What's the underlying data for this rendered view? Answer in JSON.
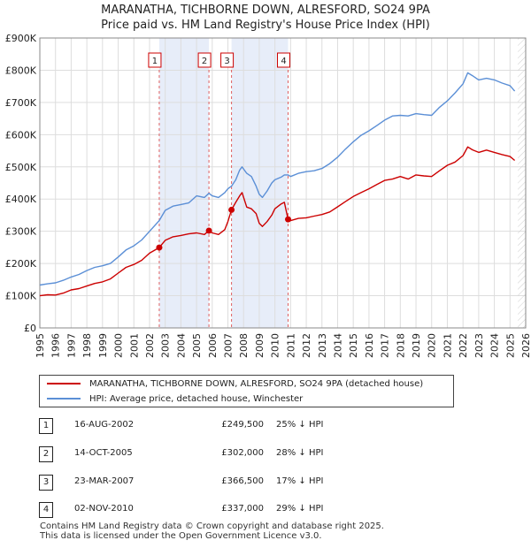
{
  "chart_data": {
    "type": "line",
    "title": "MARANATHA, TICHBORNE DOWN, ALRESFORD, SO24 9PA",
    "subtitle": "Price paid vs. HM Land Registry's House Price Index (HPI)",
    "xlim": [
      1995,
      2026
    ],
    "ylim": [
      0,
      900000
    ],
    "x_ticks": [
      1995,
      1996,
      1997,
      1998,
      1999,
      2000,
      2001,
      2002,
      2003,
      2004,
      2005,
      2006,
      2007,
      2008,
      2009,
      2010,
      2011,
      2012,
      2013,
      2014,
      2015,
      2016,
      2017,
      2018,
      2019,
      2020,
      2021,
      2022,
      2023,
      2024,
      2025,
      2026
    ],
    "y_ticks": [
      0,
      100000,
      200000,
      300000,
      400000,
      500000,
      600000,
      700000,
      800000,
      900000
    ],
    "y_tick_labels": [
      "£0",
      "£100K",
      "£200K",
      "£300K",
      "£400K",
      "£500K",
      "£600K",
      "£700K",
      "£800K",
      "£900K"
    ],
    "series": [
      {
        "name": "MARANATHA, TICHBORNE DOWN, ALRESFORD, SO24 9PA (detached house)",
        "color": "#cc0000",
        "points": [
          [
            1995.0,
            100000
          ],
          [
            1995.5,
            103000
          ],
          [
            1996.0,
            102000
          ],
          [
            1996.5,
            108000
          ],
          [
            1997.0,
            118000
          ],
          [
            1997.5,
            122000
          ],
          [
            1998.0,
            130000
          ],
          [
            1998.5,
            138000
          ],
          [
            1999.0,
            143000
          ],
          [
            1999.5,
            152000
          ],
          [
            2000.0,
            170000
          ],
          [
            2000.5,
            188000
          ],
          [
            2001.0,
            197000
          ],
          [
            2001.5,
            210000
          ],
          [
            2002.0,
            232000
          ],
          [
            2002.62,
            249500
          ],
          [
            2003.0,
            272000
          ],
          [
            2003.5,
            283000
          ],
          [
            2004.0,
            287000
          ],
          [
            2004.5,
            292000
          ],
          [
            2005.0,
            295000
          ],
          [
            2005.5,
            290000
          ],
          [
            2005.79,
            302000
          ],
          [
            2006.0,
            295000
          ],
          [
            2006.4,
            290000
          ],
          [
            2006.8,
            305000
          ],
          [
            2007.0,
            330000
          ],
          [
            2007.23,
            366500
          ],
          [
            2007.5,
            390000
          ],
          [
            2007.75,
            410000
          ],
          [
            2007.9,
            420000
          ],
          [
            2008.2,
            375000
          ],
          [
            2008.5,
            370000
          ],
          [
            2008.8,
            355000
          ],
          [
            2009.0,
            325000
          ],
          [
            2009.2,
            315000
          ],
          [
            2009.5,
            330000
          ],
          [
            2009.8,
            350000
          ],
          [
            2010.0,
            370000
          ],
          [
            2010.4,
            385000
          ],
          [
            2010.6,
            390000
          ],
          [
            2010.84,
            337000
          ],
          [
            2011.0,
            333000
          ],
          [
            2011.5,
            340000
          ],
          [
            2012.0,
            342000
          ],
          [
            2012.5,
            347000
          ],
          [
            2013.0,
            352000
          ],
          [
            2013.5,
            360000
          ],
          [
            2014.0,
            376000
          ],
          [
            2014.5,
            392000
          ],
          [
            2015.0,
            408000
          ],
          [
            2015.5,
            420000
          ],
          [
            2016.0,
            432000
          ],
          [
            2016.5,
            445000
          ],
          [
            2017.0,
            458000
          ],
          [
            2017.5,
            462000
          ],
          [
            2018.0,
            470000
          ],
          [
            2018.5,
            462000
          ],
          [
            2019.0,
            475000
          ],
          [
            2019.5,
            472000
          ],
          [
            2020.0,
            470000
          ],
          [
            2020.5,
            488000
          ],
          [
            2021.0,
            505000
          ],
          [
            2021.5,
            515000
          ],
          [
            2022.0,
            535000
          ],
          [
            2022.3,
            562000
          ],
          [
            2022.6,
            553000
          ],
          [
            2023.0,
            545000
          ],
          [
            2023.5,
            552000
          ],
          [
            2024.0,
            545000
          ],
          [
            2024.5,
            538000
          ],
          [
            2025.0,
            532000
          ],
          [
            2025.3,
            520000
          ]
        ]
      },
      {
        "name": "HPI: Average price, detached house, Winchester",
        "color": "#5b8fd6",
        "points": [
          [
            1995.0,
            133000
          ],
          [
            1995.5,
            137000
          ],
          [
            1996.0,
            140000
          ],
          [
            1996.5,
            148000
          ],
          [
            1997.0,
            158000
          ],
          [
            1997.5,
            166000
          ],
          [
            1998.0,
            178000
          ],
          [
            1998.5,
            188000
          ],
          [
            1999.0,
            193000
          ],
          [
            1999.5,
            200000
          ],
          [
            2000.0,
            220000
          ],
          [
            2000.5,
            242000
          ],
          [
            2001.0,
            255000
          ],
          [
            2001.5,
            273000
          ],
          [
            2002.0,
            300000
          ],
          [
            2002.62,
            333000
          ],
          [
            2003.0,
            365000
          ],
          [
            2003.5,
            378000
          ],
          [
            2004.0,
            383000
          ],
          [
            2004.5,
            388000
          ],
          [
            2005.0,
            410000
          ],
          [
            2005.5,
            405000
          ],
          [
            2005.79,
            418000
          ],
          [
            2006.0,
            410000
          ],
          [
            2006.4,
            405000
          ],
          [
            2006.8,
            420000
          ],
          [
            2007.0,
            432000
          ],
          [
            2007.23,
            440000
          ],
          [
            2007.5,
            460000
          ],
          [
            2007.75,
            490000
          ],
          [
            2007.9,
            500000
          ],
          [
            2008.2,
            480000
          ],
          [
            2008.5,
            470000
          ],
          [
            2008.8,
            440000
          ],
          [
            2009.0,
            415000
          ],
          [
            2009.2,
            405000
          ],
          [
            2009.5,
            425000
          ],
          [
            2009.8,
            450000
          ],
          [
            2010.0,
            460000
          ],
          [
            2010.4,
            468000
          ],
          [
            2010.6,
            475000
          ],
          [
            2010.84,
            475000
          ],
          [
            2011.0,
            470000
          ],
          [
            2011.5,
            480000
          ],
          [
            2012.0,
            485000
          ],
          [
            2012.5,
            488000
          ],
          [
            2013.0,
            495000
          ],
          [
            2013.5,
            510000
          ],
          [
            2014.0,
            530000
          ],
          [
            2014.5,
            555000
          ],
          [
            2015.0,
            578000
          ],
          [
            2015.5,
            598000
          ],
          [
            2016.0,
            612000
          ],
          [
            2016.5,
            628000
          ],
          [
            2017.0,
            645000
          ],
          [
            2017.5,
            658000
          ],
          [
            2018.0,
            660000
          ],
          [
            2018.5,
            658000
          ],
          [
            2019.0,
            665000
          ],
          [
            2019.5,
            662000
          ],
          [
            2020.0,
            660000
          ],
          [
            2020.5,
            685000
          ],
          [
            2021.0,
            705000
          ],
          [
            2021.5,
            730000
          ],
          [
            2022.0,
            758000
          ],
          [
            2022.3,
            792000
          ],
          [
            2022.6,
            783000
          ],
          [
            2023.0,
            770000
          ],
          [
            2023.5,
            775000
          ],
          [
            2024.0,
            770000
          ],
          [
            2024.5,
            760000
          ],
          [
            2025.0,
            752000
          ],
          [
            2025.3,
            735000
          ]
        ]
      }
    ],
    "sales": [
      {
        "id": "1",
        "x": 2002.62,
        "y": 249500,
        "date": "16-AUG-2002",
        "price": "£249,500",
        "delta": "25% ↓ HPI"
      },
      {
        "id": "2",
        "x": 2005.79,
        "y": 302000,
        "date": "14-OCT-2005",
        "price": "£302,000",
        "delta": "28% ↓ HPI"
      },
      {
        "id": "3",
        "x": 2007.23,
        "y": 366500,
        "date": "23-MAR-2007",
        "price": "£366,500",
        "delta": "17% ↓ HPI"
      },
      {
        "id": "4",
        "x": 2010.84,
        "y": 337000,
        "date": "02-NOV-2010",
        "price": "£337,000",
        "delta": "29% ↓ HPI"
      }
    ],
    "shaded_spans": [
      [
        2002.62,
        2005.79
      ],
      [
        2007.23,
        2010.84
      ]
    ],
    "grid": true
  },
  "legend": {
    "property_label": "MARANATHA, TICHBORNE DOWN, ALRESFORD, SO24 9PA (detached house)",
    "hpi_label": "HPI: Average price, detached house, Winchester"
  },
  "footer": {
    "line1": "Contains HM Land Registry data © Crown copyright and database right 2025.",
    "line2": "This data is licensed under the Open Government Licence v3.0."
  }
}
